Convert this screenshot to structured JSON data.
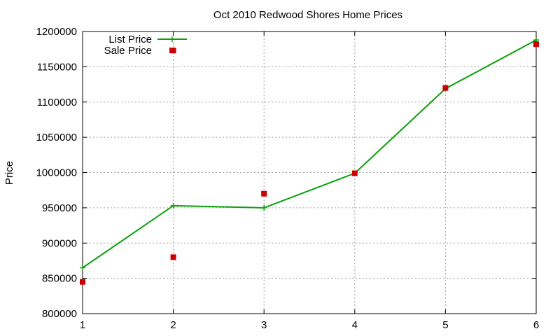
{
  "chart_data": {
    "type": "line",
    "title": "Oct 2010 Redwood Shores Home Prices",
    "xlabel": "",
    "ylabel": "Price",
    "x": [
      1,
      2,
      3,
      4,
      5,
      6
    ],
    "xlim": [
      1,
      6
    ],
    "ylim": [
      800000,
      1200000
    ],
    "xticks": [
      "1",
      "2",
      "3",
      "4",
      "5",
      "6"
    ],
    "yticks": [
      "800000",
      "850000",
      "900000",
      "950000",
      "1000000",
      "1050000",
      "1100000",
      "1150000",
      "1200000"
    ],
    "grid": true,
    "legend_position": "top-left",
    "series": [
      {
        "name": "List Price",
        "style": "line+cross",
        "color": "#0aa00a",
        "values": [
          865000,
          953000,
          950000,
          999000,
          1119000,
          1188000
        ]
      },
      {
        "name": "Sale Price",
        "style": "square-marker",
        "color": "#cc0000",
        "values": [
          845000,
          880000,
          970000,
          999000,
          1120000,
          1182000
        ],
        "extra_points": [
          {
            "x": 2,
            "y": 1173000
          }
        ]
      }
    ]
  }
}
